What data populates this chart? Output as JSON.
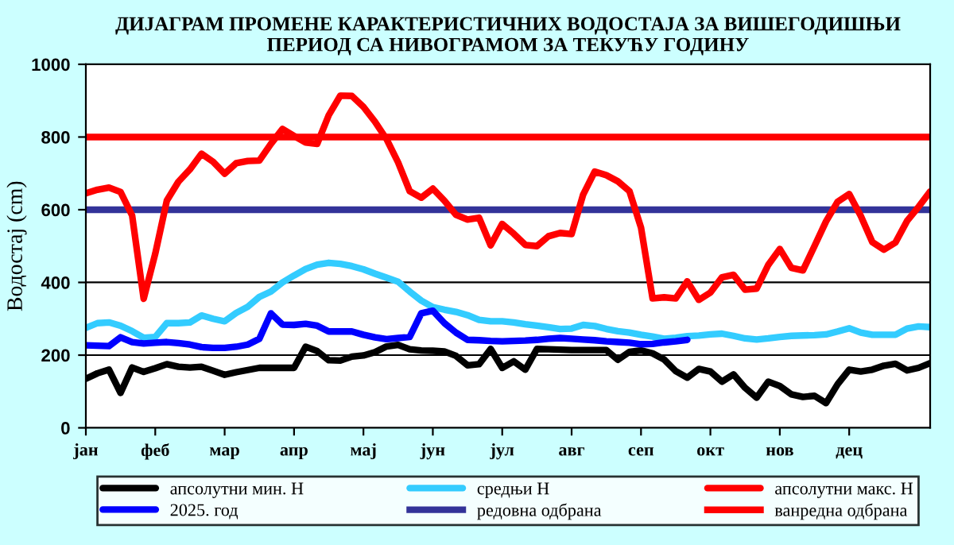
{
  "chart_data": {
    "type": "line",
    "title": "ДИЈАГРАМ ПРОМЕНЕ КАРАКТЕРИСТИЧНИХ ВОДОСТАЈА ЗА ВИШЕГОДИШЊИ\nПЕРИОД СА НИВОГРАМОМ ЗА ТЕКУЋУ ГОДИНУ",
    "ylabel": "Водостај (cm)",
    "categories": [
      "јан",
      null,
      null,
      null,
      null,
      null,
      "феб",
      null,
      null,
      null,
      null,
      null,
      "мар",
      null,
      null,
      null,
      null,
      null,
      "апр",
      null,
      null,
      null,
      null,
      null,
      "мај",
      null,
      null,
      null,
      null,
      null,
      "јун",
      null,
      null,
      null,
      null,
      null,
      "јул",
      null,
      null,
      null,
      null,
      null,
      "авг",
      null,
      null,
      null,
      null,
      null,
      "сеп",
      null,
      null,
      null,
      null,
      null,
      "окт",
      null,
      null,
      null,
      null,
      null,
      "нов",
      null,
      null,
      null,
      null,
      null,
      "дец",
      null,
      null,
      null,
      null,
      null,
      null,
      null
    ],
    "ylim": [
      0,
      1000
    ],
    "yticks": [
      0,
      200,
      400,
      600,
      800,
      1000
    ],
    "grid": "y",
    "legend": "bottom",
    "line_style": "solid",
    "marker": "none",
    "series": [
      {
        "name": "апсолутни мин. H",
        "color": "#000000",
        "values": [
          135,
          150,
          160,
          96,
          166,
          154,
          164,
          175,
          168,
          166,
          168,
          157,
          146,
          153,
          159,
          165,
          165,
          165,
          165,
          223,
          211,
          186,
          185,
          196,
          199,
          208,
          224,
          228,
          216,
          213,
          212,
          210,
          198,
          172,
          175,
          217,
          165,
          183,
          160,
          217,
          216,
          215,
          214,
          214,
          214,
          214,
          187,
          209,
          213,
          205,
          188,
          156,
          138,
          162,
          155,
          127,
          147,
          110,
          83,
          127,
          115,
          92,
          85,
          88,
          68,
          120,
          160,
          155,
          160,
          171,
          176,
          158,
          165,
          178
        ]
      },
      {
        "name": "средњи H",
        "color": "#33ccff",
        "values": [
          275,
          288,
          290,
          281,
          266,
          248,
          250,
          288,
          288,
          290,
          309,
          300,
          293,
          316,
          333,
          360,
          375,
          400,
          419,
          437,
          449,
          454,
          451,
          445,
          436,
          424,
          413,
          402,
          375,
          350,
          332,
          325,
          319,
          310,
          297,
          293,
          293,
          290,
          285,
          281,
          277,
          272,
          273,
          283,
          280,
          272,
          266,
          262,
          256,
          251,
          245,
          248,
          252,
          254,
          257,
          259,
          253,
          246,
          243,
          246,
          250,
          253,
          254,
          255,
          257,
          265,
          274,
          262,
          256,
          256,
          256,
          273,
          279,
          277
        ]
      },
      {
        "name": "апсолутни макс. H",
        "color": "#ff0000",
        "values": [
          645,
          655,
          661,
          649,
          584,
          355,
          479,
          625,
          677,
          711,
          754,
          732,
          699,
          728,
          734,
          735,
          781,
          822,
          803,
          785,
          781,
          860,
          914,
          913,
          883,
          842,
          794,
          730,
          651,
          633,
          658,
          625,
          586,
          573,
          578,
          502,
          561,
          534,
          503,
          500,
          527,
          536,
          533,
          642,
          705,
          695,
          678,
          651,
          551,
          356,
          359,
          356,
          403,
          352,
          372,
          414,
          421,
          380,
          383,
          448,
          492,
          440,
          433,
          500,
          568,
          622,
          643,
          583,
          511,
          490,
          510,
          569,
          608,
          650
        ]
      },
      {
        "name": "2025. год",
        "color": "#0000ff",
        "values": [
          227,
          226,
          225,
          249,
          236,
          232,
          234,
          236,
          233,
          229,
          222,
          220,
          220,
          223,
          229,
          245,
          315,
          284,
          283,
          286,
          281,
          265,
          265,
          265,
          256,
          249,
          244,
          247,
          250,
          315,
          322,
          288,
          262,
          242,
          241,
          239,
          238,
          239,
          240,
          242,
          245,
          247,
          245,
          243,
          241,
          238,
          236,
          234,
          230,
          231,
          235,
          238,
          242,
          null,
          null,
          null,
          null,
          null,
          null,
          null,
          null,
          null,
          null,
          null,
          null,
          null,
          null,
          null,
          null,
          null,
          null,
          null,
          null,
          null
        ]
      }
    ],
    "ref_lines": [
      {
        "axis": "y",
        "value": 600,
        "label": "редовна одбрана",
        "color": "#333399",
        "line_style": "solid"
      },
      {
        "axis": "y",
        "value": 800,
        "label": "ванредна одбрана",
        "color": "#ff0000",
        "line_style": "solid"
      }
    ]
  }
}
